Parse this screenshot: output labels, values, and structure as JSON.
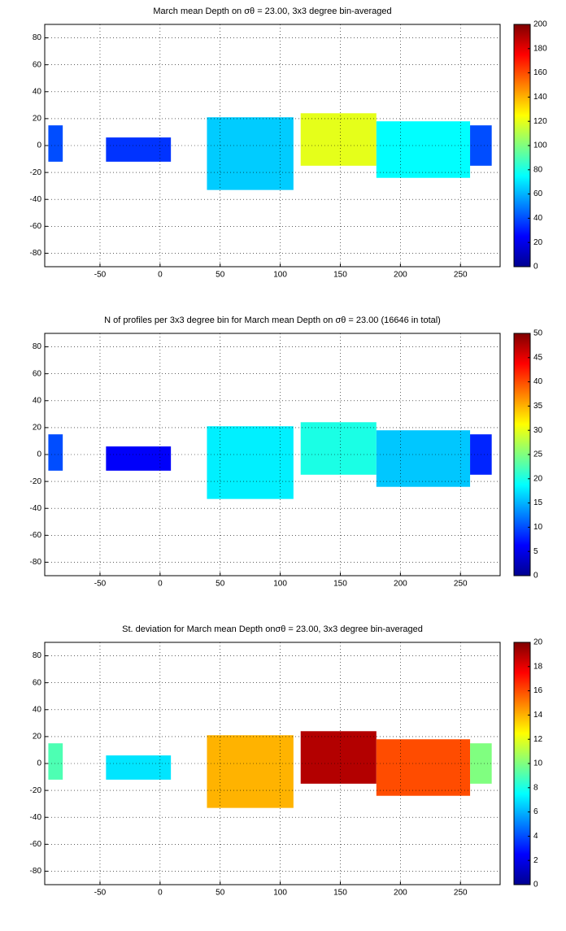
{
  "chart_data": [
    {
      "type": "heatmap",
      "title": "March mean Depth on σθ = 23.00, 3x3 degree bin-averaged",
      "xlim": [
        -96,
        283
      ],
      "ylim": [
        -90,
        90
      ],
      "xticks": [
        -50,
        0,
        50,
        100,
        150,
        200,
        250
      ],
      "yticks": [
        -80,
        -60,
        -40,
        -20,
        0,
        20,
        40,
        60,
        80
      ],
      "clim": [
        0,
        200
      ],
      "cticks": [
        0,
        20,
        40,
        60,
        80,
        100,
        120,
        140,
        160,
        180,
        200
      ],
      "grid": true,
      "regions": [
        {
          "lon": [
            -93,
            -81
          ],
          "lat": [
            -12,
            15
          ],
          "value": 40
        },
        {
          "lon": [
            -45,
            9
          ],
          "lat": [
            -12,
            6
          ],
          "value": 35
        },
        {
          "lon": [
            39,
            111
          ],
          "lat": [
            -33,
            21
          ],
          "value": 65
        },
        {
          "lon": [
            117,
            180
          ],
          "lat": [
            -15,
            24
          ],
          "value": 120
        },
        {
          "lon": [
            180,
            258
          ],
          "lat": [
            -24,
            18
          ],
          "value": 75
        },
        {
          "lon": [
            258,
            276
          ],
          "lat": [
            -15,
            15
          ],
          "value": 40
        }
      ]
    },
    {
      "type": "heatmap",
      "title": "N of profiles per 3x3 degree bin for March mean Depth on σθ = 23.00 (16646 in total)",
      "xlim": [
        -96,
        283
      ],
      "ylim": [
        -90,
        90
      ],
      "xticks": [
        -50,
        0,
        50,
        100,
        150,
        200,
        250
      ],
      "yticks": [
        -80,
        -60,
        -40,
        -20,
        0,
        20,
        40,
        60,
        80
      ],
      "clim": [
        0,
        50
      ],
      "cticks": [
        0,
        5,
        10,
        15,
        20,
        25,
        30,
        35,
        40,
        45,
        50
      ],
      "grid": true,
      "regions": [
        {
          "lon": [
            -93,
            -81
          ],
          "lat": [
            -12,
            15
          ],
          "value": 10
        },
        {
          "lon": [
            -45,
            9
          ],
          "lat": [
            -12,
            6
          ],
          "value": 6
        },
        {
          "lon": [
            39,
            111
          ],
          "lat": [
            -33,
            21
          ],
          "value": 18
        },
        {
          "lon": [
            117,
            180
          ],
          "lat": [
            -15,
            24
          ],
          "value": 20
        },
        {
          "lon": [
            180,
            258
          ],
          "lat": [
            -24,
            18
          ],
          "value": 16
        },
        {
          "lon": [
            258,
            276
          ],
          "lat": [
            -15,
            15
          ],
          "value": 8
        }
      ]
    },
    {
      "type": "heatmap",
      "title": "St. deviation for March mean Depth onσθ = 23.00, 3x3 degree bin-averaged",
      "xlim": [
        -96,
        283
      ],
      "ylim": [
        -90,
        90
      ],
      "xticks": [
        -50,
        0,
        50,
        100,
        150,
        200,
        250
      ],
      "yticks": [
        -80,
        -60,
        -40,
        -20,
        0,
        20,
        40,
        60,
        80
      ],
      "clim": [
        0,
        20
      ],
      "cticks": [
        0,
        2,
        4,
        6,
        8,
        10,
        12,
        14,
        16,
        18,
        20
      ],
      "grid": true,
      "regions": [
        {
          "lon": [
            -93,
            -81
          ],
          "lat": [
            -12,
            15
          ],
          "value": 9
        },
        {
          "lon": [
            -45,
            9
          ],
          "lat": [
            -12,
            6
          ],
          "value": 7
        },
        {
          "lon": [
            39,
            111
          ],
          "lat": [
            -33,
            21
          ],
          "value": 14
        },
        {
          "lon": [
            117,
            180
          ],
          "lat": [
            -15,
            24
          ],
          "value": 19
        },
        {
          "lon": [
            180,
            258
          ],
          "lat": [
            -24,
            18
          ],
          "value": 16
        },
        {
          "lon": [
            258,
            276
          ],
          "lat": [
            -15,
            15
          ],
          "value": 10
        }
      ]
    }
  ]
}
